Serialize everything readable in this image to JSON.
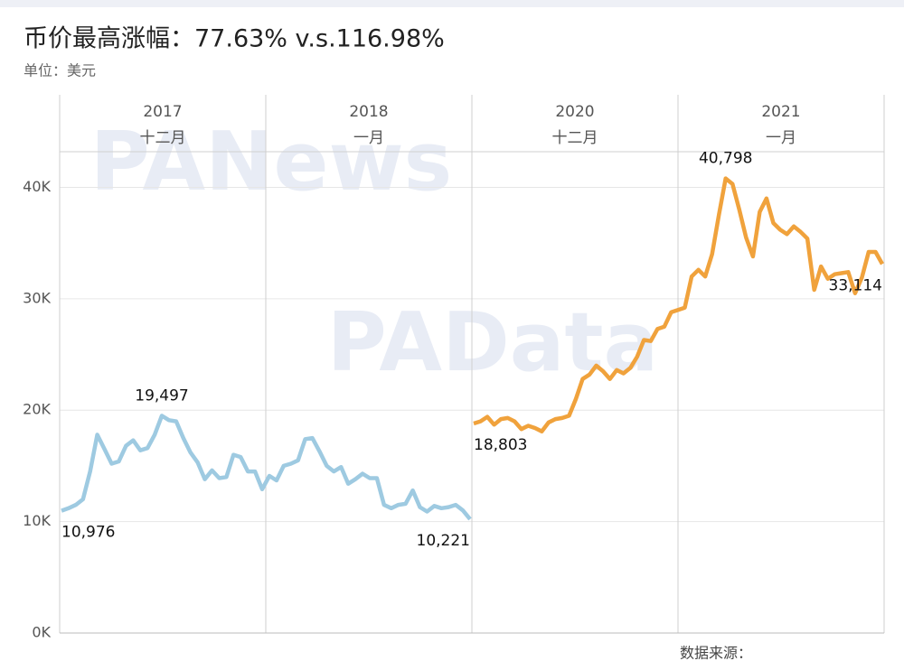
{
  "chart_data": {
    "type": "line",
    "title": "币价最高涨幅：77.63% v.s.116.98%",
    "subtitle": "单位：美元",
    "source": "数据来源：",
    "watermarks": [
      "PANews",
      "PAData"
    ],
    "panels": [
      {
        "year": "2017",
        "month": "十二月"
      },
      {
        "year": "2018",
        "month": "一月"
      },
      {
        "year": "2020",
        "month": "十二月"
      },
      {
        "year": "2021",
        "month": "一月"
      }
    ],
    "ylim": [
      0,
      43200
    ],
    "yticks": [
      {
        "value": 0,
        "label": "0K"
      },
      {
        "value": 10000,
        "label": "10K"
      },
      {
        "value": 20000,
        "label": "20K"
      },
      {
        "value": 30000,
        "label": "30K"
      },
      {
        "value": 40000,
        "label": "40K"
      }
    ],
    "grid": true,
    "series": [
      {
        "color": "#9ecae1",
        "values": [
          10976,
          11200,
          11500,
          12000,
          14500,
          17800,
          16500,
          15200,
          15400,
          16800,
          17300,
          16400,
          16600,
          17800,
          19497,
          19100,
          19000,
          17500,
          16200,
          15300,
          13800,
          14600,
          13900,
          14000,
          16000,
          15800,
          14500,
          14500,
          12900,
          14100,
          13700,
          15000,
          15200,
          15500,
          17400,
          17500,
          16300,
          15000,
          14500,
          14900,
          13400,
          13800,
          14300,
          13900,
          13900,
          11500,
          11200,
          11500,
          11600,
          12800,
          11300,
          10900,
          11400,
          11200,
          11300,
          11500,
          11000,
          10221
        ],
        "value_labels": [
          "10,976",
          null,
          null,
          null,
          null,
          null,
          null,
          null,
          null,
          null,
          null,
          null,
          null,
          null,
          "19,497",
          null,
          null,
          null,
          null,
          null,
          null,
          null,
          null,
          null,
          null,
          null,
          null,
          null,
          null,
          null,
          null,
          null,
          null,
          null,
          null,
          null,
          null,
          null,
          null,
          null,
          null,
          null,
          null,
          null,
          null,
          null,
          null,
          null,
          null,
          null,
          null,
          null,
          null,
          null,
          null,
          null,
          null,
          "10,221"
        ]
      },
      {
        "color": "#f0a23c",
        "values": [
          18803,
          19000,
          19400,
          18700,
          19200,
          19300,
          19000,
          18300,
          18600,
          18400,
          18100,
          18900,
          19200,
          19300,
          19500,
          21000,
          22800,
          23200,
          24000,
          23500,
          22800,
          23600,
          23300,
          23800,
          24800,
          26300,
          26200,
          27300,
          27500,
          28800,
          29000,
          29200,
          32000,
          32600,
          32000,
          34000,
          37500,
          40798,
          40300,
          38000,
          35500,
          33800,
          37800,
          39000,
          36800,
          36200,
          35800,
          36500,
          36000,
          35400,
          30800,
          32900,
          31800,
          32200,
          32300,
          32400,
          30500,
          31900,
          34200,
          34200,
          33114
        ],
        "value_labels": [
          "18,803",
          null,
          null,
          null,
          null,
          null,
          null,
          null,
          null,
          null,
          null,
          null,
          null,
          null,
          null,
          null,
          null,
          null,
          null,
          null,
          null,
          null,
          null,
          null,
          null,
          null,
          null,
          null,
          null,
          null,
          null,
          null,
          null,
          null,
          null,
          null,
          null,
          "40,798",
          null,
          null,
          null,
          null,
          null,
          null,
          null,
          null,
          null,
          null,
          null,
          null,
          null,
          null,
          null,
          null,
          null,
          null,
          null,
          null,
          null,
          null,
          "33,114"
        ]
      }
    ]
  }
}
